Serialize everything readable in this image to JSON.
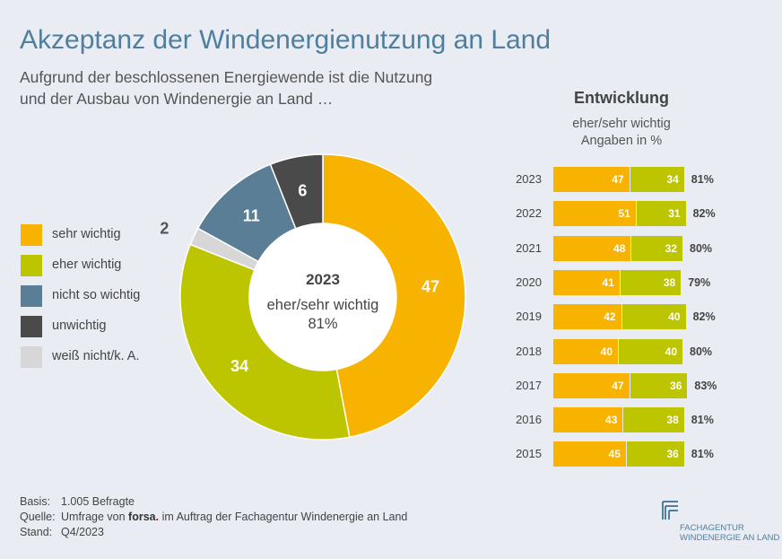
{
  "title": "Akzeptanz der Windenergienutzung an Land",
  "subtitle_line1": "Aufgrund der beschlossenen Energiewende ist die Nutzung",
  "subtitle_line2": "und der Ausbau von Windenergie an Land …",
  "colors": {
    "sehr_wichtig": "#f8b200",
    "eher_wichtig": "#bcc500",
    "nicht_so_wichtig": "#5b7e97",
    "unwichtig": "#4a4a4a",
    "weiss_nicht": "#d7d7d7",
    "title": "#4f7f9f"
  },
  "legend": [
    {
      "label": "sehr wichtig",
      "color": "#f8b200"
    },
    {
      "label": "eher wichtig",
      "color": "#bcc500"
    },
    {
      "label": "nicht so wichtig",
      "color": "#5b7e97"
    },
    {
      "label": "unwichtig",
      "color": "#4a4a4a"
    },
    {
      "label": "weiß nicht/k. A.",
      "color": "#d7d7d7"
    }
  ],
  "center": {
    "year": "2023",
    "label": "eher/sehr wichtig",
    "value": "81%"
  },
  "development": {
    "title": "Entwicklung",
    "subtitle1": "eher/sehr wichtig",
    "subtitle2": "Angaben in %"
  },
  "footer": {
    "basis_key": "Basis:",
    "basis_value": "1.005 Befragte",
    "quelle_key": "Quelle:",
    "quelle_pre": "Umfrage von",
    "quelle_brand": "forsa",
    "quelle_brand_dot": ".",
    "quelle_post": "im Auftrag der Fachagentur Windenergie an Land",
    "stand_key": "Stand:",
    "stand_value": "Q4/2023"
  },
  "logo": {
    "line1": "FACHAGENTUR",
    "line2": "WINDENERGIE AN LAND"
  },
  "chart_data": [
    {
      "type": "pie",
      "categories": [
        "sehr wichtig",
        "eher wichtig",
        "weiß nicht/k. A.",
        "nicht so wichtig",
        "unwichtig"
      ],
      "values": [
        47,
        34,
        2,
        11,
        6
      ],
      "colors": [
        "#f8b200",
        "#bcc500",
        "#d7d7d7",
        "#5b7e97",
        "#4a4a4a"
      ],
      "title": "2023"
    },
    {
      "type": "bar",
      "stacked": true,
      "orientation": "horizontal",
      "categories": [
        "2023",
        "2022",
        "2021",
        "2020",
        "2019",
        "2018",
        "2017",
        "2016",
        "2015"
      ],
      "series": [
        {
          "name": "sehr wichtig",
          "values": [
            47,
            51,
            48,
            41,
            42,
            40,
            47,
            43,
            45
          ]
        },
        {
          "name": "eher wichtig",
          "values": [
            34,
            31,
            32,
            38,
            40,
            40,
            36,
            38,
            36
          ]
        }
      ],
      "totals": [
        "81%",
        "82%",
        "80%",
        "79%",
        "82%",
        "80%",
        "83%",
        "81%",
        "81%"
      ]
    }
  ]
}
